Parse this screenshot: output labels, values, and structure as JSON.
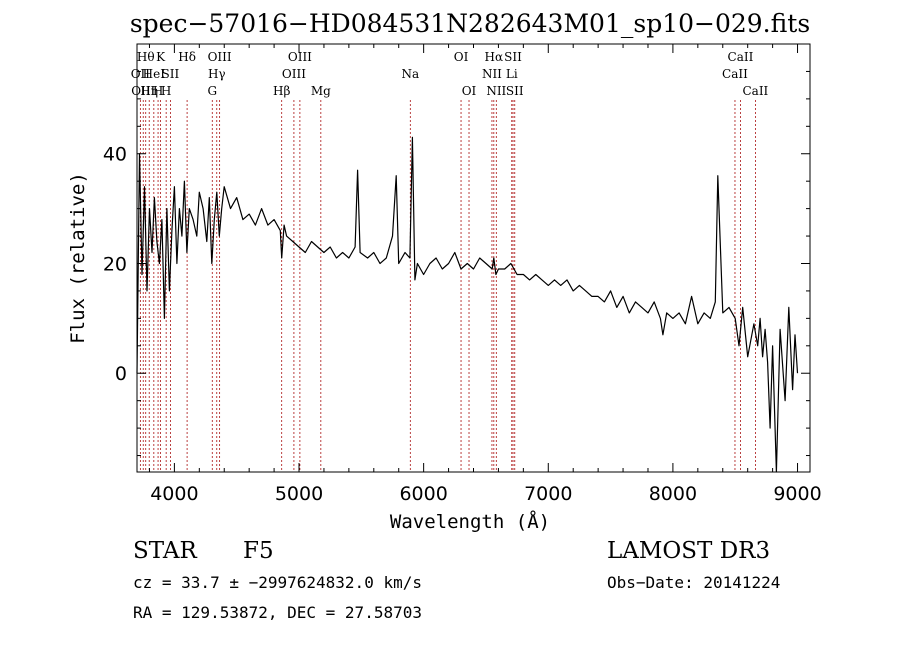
{
  "chart_data": {
    "type": "line",
    "title": "spec−57016−HD084531N282643M01_sp10−029.fits",
    "xlabel": "Wavelength (Å)",
    "ylabel": "Flux (relative)",
    "xlim": [
      3700,
      9100
    ],
    "ylim": [
      -18,
      60
    ],
    "x_ticks": [
      4000,
      5000,
      6000,
      7000,
      8000,
      9000
    ],
    "y_ticks": [
      0,
      20,
      40
    ],
    "series": [
      {
        "name": "flux",
        "x": [
          3700,
          3720,
          3740,
          3760,
          3780,
          3800,
          3820,
          3840,
          3860,
          3880,
          3900,
          3920,
          3940,
          3960,
          3980,
          4000,
          4020,
          4040,
          4060,
          4080,
          4100,
          4120,
          4150,
          4180,
          4200,
          4230,
          4260,
          4280,
          4300,
          4320,
          4340,
          4360,
          4380,
          4400,
          4450,
          4500,
          4550,
          4600,
          4650,
          4700,
          4750,
          4800,
          4850,
          4861,
          4880,
          4900,
          4950,
          5000,
          5050,
          5100,
          5150,
          5200,
          5250,
          5300,
          5350,
          5400,
          5450,
          5470,
          5490,
          5550,
          5600,
          5650,
          5700,
          5750,
          5780,
          5800,
          5850,
          5890,
          5910,
          5930,
          5950,
          6000,
          6050,
          6100,
          6150,
          6200,
          6250,
          6300,
          6350,
          6400,
          6450,
          6500,
          6550,
          6563,
          6580,
          6600,
          6650,
          6700,
          6750,
          6800,
          6850,
          6900,
          6950,
          7000,
          7050,
          7100,
          7150,
          7200,
          7250,
          7300,
          7350,
          7400,
          7450,
          7500,
          7550,
          7600,
          7650,
          7700,
          7750,
          7800,
          7850,
          7900,
          7920,
          7950,
          8000,
          8050,
          8100,
          8150,
          8200,
          8250,
          8300,
          8340,
          8360,
          8400,
          8450,
          8500,
          8530,
          8560,
          8600,
          8650,
          8680,
          8700,
          8720,
          8740,
          8760,
          8780,
          8800,
          8830,
          8860,
          8900,
          8930,
          8960,
          8980,
          9000
        ],
        "y": [
          0,
          40,
          18,
          34,
          15,
          30,
          22,
          32,
          24,
          20,
          28,
          10,
          30,
          15,
          26,
          34,
          20,
          30,
          25,
          35,
          22,
          30,
          28,
          25,
          33,
          30,
          24,
          32,
          20,
          28,
          33,
          25,
          30,
          34,
          30,
          32,
          28,
          29,
          27,
          30,
          27,
          28,
          26,
          21,
          27,
          25,
          24,
          23,
          22,
          24,
          23,
          22,
          23,
          21,
          22,
          21,
          23,
          37,
          22,
          21,
          22,
          20,
          21,
          25,
          36,
          20,
          22,
          21,
          43,
          17,
          20,
          18,
          20,
          21,
          19,
          20,
          22,
          19,
          20,
          19,
          21,
          20,
          19,
          21,
          18,
          19,
          19,
          20,
          18,
          18,
          17,
          18,
          17,
          16,
          17,
          16,
          17,
          15,
          16,
          15,
          14,
          14,
          13,
          15,
          12,
          14,
          11,
          13,
          12,
          11,
          13,
          10,
          7,
          11,
          10,
          11,
          9,
          14,
          9,
          11,
          10,
          13,
          36,
          11,
          12,
          10,
          5,
          12,
          3,
          9,
          5,
          10,
          3,
          8,
          2,
          -10,
          5,
          -18,
          8,
          -5,
          12,
          -3,
          7,
          0
        ]
      }
    ],
    "spectral_lines": [
      {
        "x": 3727,
        "label": "OII",
        "row": 1
      },
      {
        "x": 3750,
        "label": "OIII",
        "row": 2
      },
      {
        "x": 3770,
        "label": "Hθ",
        "row": 0
      },
      {
        "x": 3798,
        "label": "Hη",
        "row": 2
      },
      {
        "x": 3835,
        "label": "HeI",
        "row": 1
      },
      {
        "x": 3869,
        "label": "Η",
        "row": 2
      },
      {
        "x": 3889,
        "label": "K",
        "row": 0
      },
      {
        "x": 3934,
        "label": "H",
        "row": 2
      },
      {
        "x": 3968,
        "label": "SII",
        "row": 1
      },
      {
        "x": 4102,
        "label": "Hδ",
        "row": 0
      },
      {
        "x": 4304,
        "label": "G",
        "row": 2
      },
      {
        "x": 4340,
        "label": "Hγ",
        "row": 1
      },
      {
        "x": 4363,
        "label": "OIII",
        "row": 0
      },
      {
        "x": 4861,
        "label": "Hβ",
        "row": 2
      },
      {
        "x": 4959,
        "label": "OIII",
        "row": 1
      },
      {
        "x": 5007,
        "label": "OIII",
        "row": 0
      },
      {
        "x": 5175,
        "label": "Mg",
        "row": 2
      },
      {
        "x": 5893,
        "label": "Na",
        "row": 1
      },
      {
        "x": 6300,
        "label": "OI",
        "row": 0
      },
      {
        "x": 6364,
        "label": "OI",
        "row": 2
      },
      {
        "x": 6548,
        "label": "NII",
        "row": 1
      },
      {
        "x": 6563,
        "label": "Hα",
        "row": 0
      },
      {
        "x": 6583,
        "label": "NII",
        "row": 2
      },
      {
        "x": 6707,
        "label": "Li",
        "row": 1
      },
      {
        "x": 6717,
        "label": "SII",
        "row": 0
      },
      {
        "x": 6731,
        "label": "SII",
        "row": 2
      },
      {
        "x": 8498,
        "label": "CaII",
        "row": 1
      },
      {
        "x": 8542,
        "label": "CaII",
        "row": 0
      },
      {
        "x": 8662,
        "label": "CaII",
        "row": 2
      }
    ]
  },
  "info": {
    "object_class": "STAR",
    "subclass": "F5",
    "survey": "LAMOST DR3",
    "cz": "cz = 33.7 ± −2997624832.0 km/s",
    "obs_date": "Obs−Date: 20141224",
    "coords": "RA = 129.53872, DEC =  27.58703"
  },
  "colors": {
    "spectrum": "#000000",
    "line_markers": "#aa1111",
    "background": "#ffffff"
  }
}
